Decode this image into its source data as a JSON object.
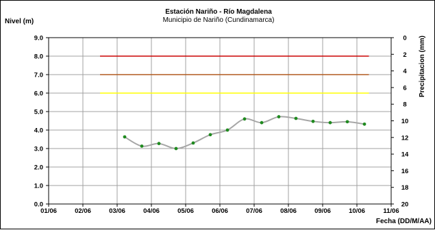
{
  "chart_data": {
    "type": "line",
    "title": "Estación Nariño  - Río Magdalena",
    "subtitle": "Municipio de Nariño (Cundinamarca)",
    "ylabel": "Nivel (m)",
    "y2label": "Precipitacion (mm)",
    "xlabel": "Fecha (DD/M/AA)",
    "ylim": [
      0,
      9
    ],
    "y2lim": [
      20,
      0
    ],
    "y2_reversed": true,
    "grid": true,
    "x_ticks": [
      "01/06",
      "02/06",
      "03/06",
      "04/06",
      "05/06",
      "06/06",
      "07/06",
      "08/06",
      "09/06",
      "10/06",
      "11/06"
    ],
    "y_ticks": [
      "0.0",
      "1.0",
      "2.0",
      "3.0",
      "4.0",
      "5.0",
      "6.0",
      "7.0",
      "8.0",
      "9.0"
    ],
    "y2_ticks": [
      "0",
      "2",
      "4",
      "6",
      "8",
      "10",
      "12",
      "14",
      "16",
      "18",
      "20"
    ],
    "x_domain": [
      0,
      10
    ],
    "thresholds": [
      {
        "y": 8.0,
        "x_start": 1.5,
        "x_end": 9.35,
        "color": "#cc0000"
      },
      {
        "y": 7.0,
        "x_start": 1.5,
        "x_end": 9.35,
        "color": "#b05a1e"
      },
      {
        "y": 6.0,
        "x_start": 1.5,
        "x_end": 9.35,
        "color": "#ffff00"
      }
    ],
    "series": [
      {
        "line_color": "#a6a6a6",
        "marker_color": "#1f8a1f",
        "x": [
          2.22,
          2.72,
          3.22,
          3.72,
          4.22,
          4.72,
          5.22,
          5.72,
          6.22,
          6.72,
          7.22,
          7.72,
          8.22,
          8.72,
          9.22
        ],
        "y": [
          3.63,
          3.13,
          3.27,
          3.0,
          3.3,
          3.75,
          4.0,
          4.6,
          4.4,
          4.72,
          4.63,
          4.47,
          4.4,
          4.45,
          4.32
        ]
      }
    ]
  }
}
